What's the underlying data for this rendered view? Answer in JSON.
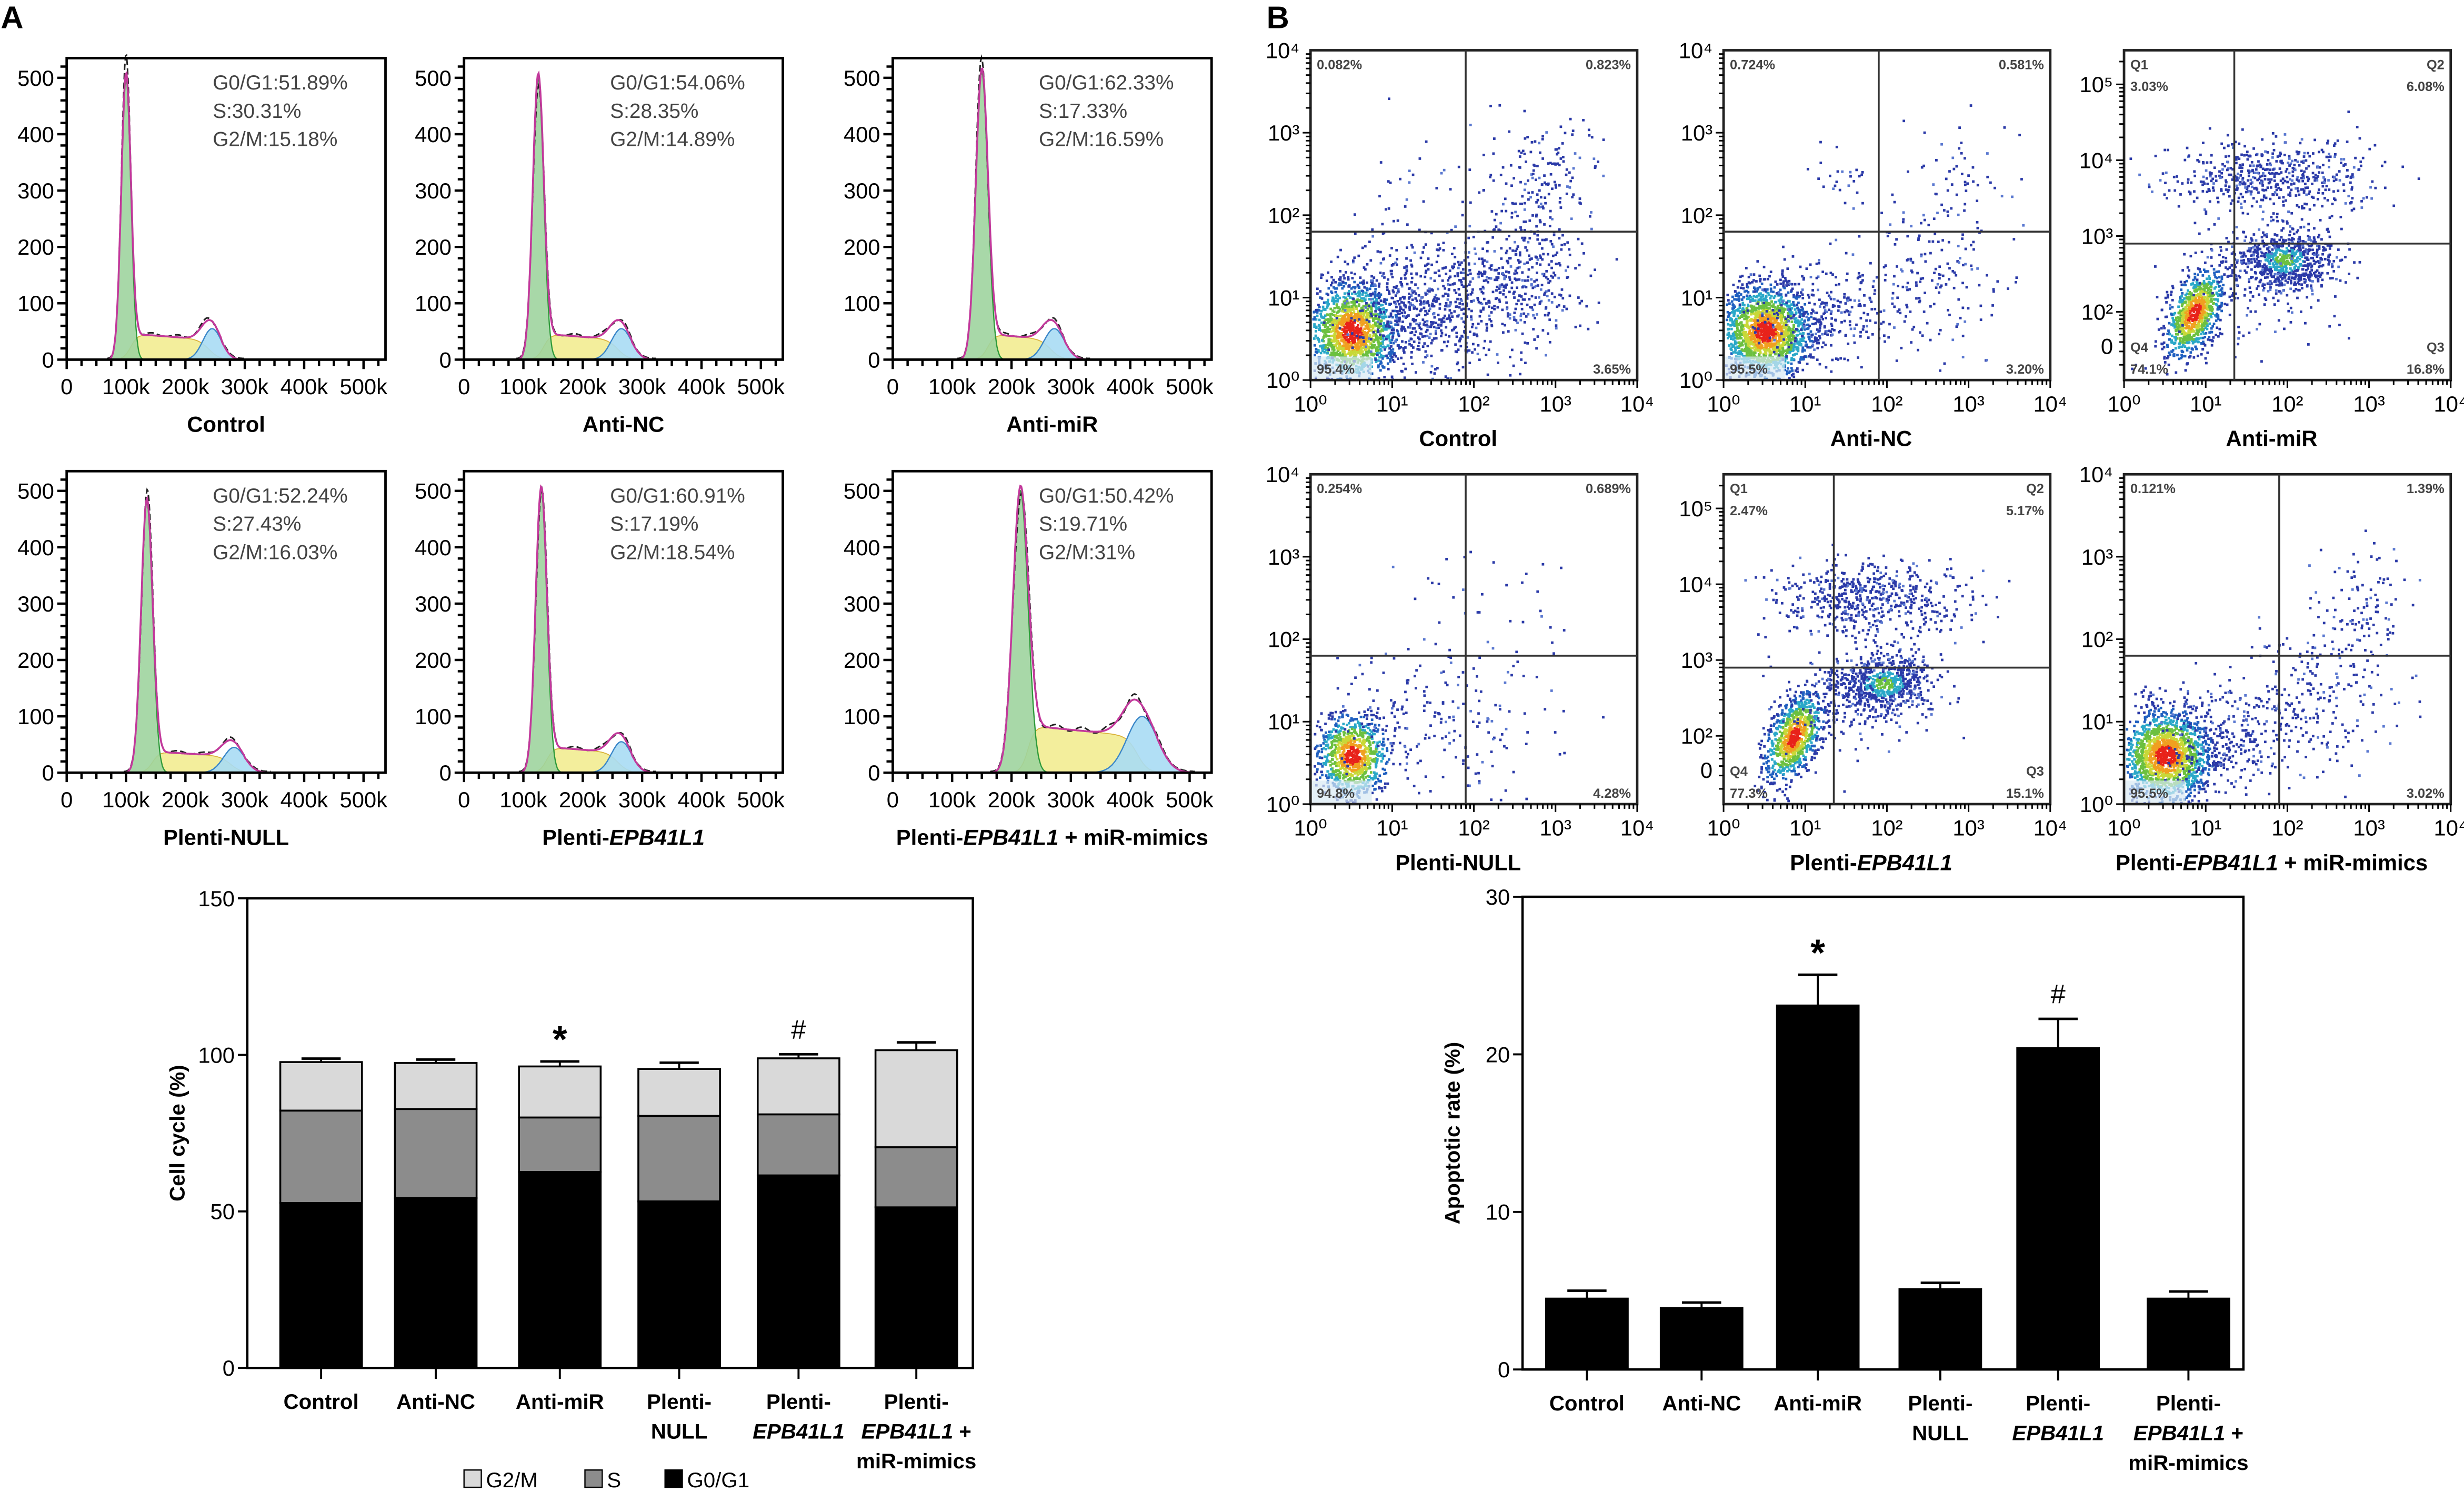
{
  "panel_labels": {
    "a": "A",
    "b": "B"
  },
  "chart_data": [
    {
      "type": "histogram",
      "panel": "A",
      "xlim": [
        0,
        537000
      ],
      "ylim": [
        0,
        535
      ],
      "xticks": [
        "0",
        "100k",
        "200k",
        "300k",
        "400k",
        "500k"
      ],
      "yticks": [
        "0",
        "100",
        "200",
        "300",
        "400",
        "500"
      ],
      "colors": {
        "g0g1": "#9fd49f",
        "s": "#f3ee9c",
        "g2m": "#a9dcf4",
        "fit": "#c2399b",
        "data": "#222222"
      },
      "panels": [
        {
          "label": [
            "Control",
            "",
            ""
          ],
          "stats": [
            "G0/G1:51.89%",
            "S:30.31%",
            "G2/M:15.18%"
          ],
          "g1_peak": [
            100000,
            500
          ],
          "g2_peak": [
            245000,
            55
          ]
        },
        {
          "label": [
            "Anti-NC",
            "",
            ""
          ],
          "stats": [
            "G0/G1:54.06%",
            "S:28.35%",
            "G2/M:14.89%"
          ],
          "g1_peak": [
            125000,
            500
          ],
          "g2_peak": [
            265000,
            55
          ]
        },
        {
          "label": [
            "Anti-miR",
            "",
            ""
          ],
          "stats": [
            "G0/G1:62.33%",
            "S:17.33%",
            "G2/M:16.59%"
          ],
          "g1_peak": [
            150000,
            510
          ],
          "g2_peak": [
            272000,
            55
          ]
        },
        {
          "label": [
            "Plenti-NULL",
            "",
            ""
          ],
          "stats": [
            "G0/G1:52.24%",
            "S:27.43%",
            "G2/M:16.03%"
          ],
          "g1_peak": [
            135000,
            480
          ],
          "g2_peak": [
            282000,
            45
          ]
        },
        {
          "label": [
            "Plenti-",
            "EPB41L1",
            ""
          ],
          "stats": [
            "G0/G1:60.91%",
            "S:17.19%",
            "G2/M:18.54%"
          ],
          "g1_peak": [
            130000,
            500
          ],
          "g2_peak": [
            265000,
            55
          ]
        },
        {
          "label": [
            "Plenti-",
            "EPB41L1",
            " + miR-mimics"
          ],
          "stats": [
            "G0/G1:50.42%",
            "S:19.71%",
            "G2/M:31%"
          ],
          "g1_peak": [
            215000,
            500
          ],
          "g2_peak": [
            420000,
            100
          ]
        }
      ]
    },
    {
      "type": "scatter",
      "panel": "B",
      "x_scale": "log",
      "xticks": [
        "10⁰",
        "10¹",
        "10²",
        "10³",
        "10⁴"
      ],
      "panels": [
        {
          "label": [
            "Control",
            "",
            ""
          ],
          "yticks": [
            "10⁰",
            "10¹",
            "10²",
            "10³",
            "10⁴"
          ],
          "quadrants": {
            "ul": "0.082%",
            "ur": "0.823%",
            "ll": "95.4%",
            "lr": "3.65%"
          }
        },
        {
          "label": [
            "Anti-NC",
            "",
            ""
          ],
          "yticks": [
            "10⁰",
            "10¹",
            "10²",
            "10³",
            "10⁴"
          ],
          "quadrants": {
            "ul": "0.724%",
            "ur": "0.581%",
            "ll": "95.5%",
            "lr": "3.20%"
          }
        },
        {
          "label": [
            "Anti-miR",
            "",
            ""
          ],
          "yticks": [
            "0",
            "10²",
            "10³",
            "10⁴",
            "10⁵"
          ],
          "quadrant_names": {
            "ul": "Q1",
            "ur": "Q2",
            "ll": "Q4",
            "lr": "Q3"
          },
          "quadrants": {
            "ul": "3.03%",
            "ur": "6.08%",
            "ll": "74.1%",
            "lr": "16.8%"
          }
        },
        {
          "label": [
            "Plenti-NULL",
            "",
            ""
          ],
          "yticks": [
            "10⁰",
            "10¹",
            "10²",
            "10³",
            "10⁴"
          ],
          "quadrants": {
            "ul": "0.254%",
            "ur": "0.689%",
            "ll": "94.8%",
            "lr": "4.28%"
          }
        },
        {
          "label": [
            "Plenti-",
            "EPB41L1",
            ""
          ],
          "yticks": [
            "0",
            "10²",
            "10³",
            "10⁴",
            "10⁵"
          ],
          "quadrant_names": {
            "ul": "Q1",
            "ur": "Q2",
            "ll": "Q4",
            "lr": "Q3"
          },
          "quadrants": {
            "ul": "2.47%",
            "ur": "5.17%",
            "ll": "77.3%",
            "lr": "15.1%"
          }
        },
        {
          "label": [
            "Plenti-",
            "EPB41L1",
            " + miR-mimics"
          ],
          "yticks": [
            "10⁰",
            "10¹",
            "10²",
            "10³",
            "10⁴"
          ],
          "quadrants": {
            "ul": "0.121%",
            "ur": "1.39%",
            "ll": "95.5%",
            "lr": "3.02%"
          }
        }
      ]
    },
    {
      "type": "bar",
      "stacked": true,
      "ylabel": "Cell cycle (%)",
      "ylim": [
        0,
        150
      ],
      "yticks": [
        "0",
        "50",
        "100",
        "150"
      ],
      "categories": [
        [
          [
            "Control",
            false
          ]
        ],
        [
          [
            "Anti-NC",
            false
          ]
        ],
        [
          [
            "Anti-miR",
            false
          ]
        ],
        [
          [
            "Plenti-",
            false
          ],
          [
            "NULL",
            false
          ]
        ],
        [
          [
            "Plenti-",
            false
          ],
          [
            "EPB41L1",
            true
          ]
        ],
        [
          [
            "Plenti-",
            false
          ],
          [
            "EPB41L1",
            true,
            " +"
          ],
          [
            "miR-mimics",
            false
          ]
        ]
      ],
      "series": [
        {
          "name": "G0/G1",
          "color": "#000000",
          "values": [
            52.7,
            54.3,
            62.6,
            53.2,
            61.5,
            51.3
          ],
          "errors": [
            4.5,
            5.4,
            6.2,
            4.8,
            5.4,
            4.2
          ]
        },
        {
          "name": "S",
          "color": "#8c8c8c",
          "values": [
            29.5,
            28.4,
            17.4,
            27.3,
            19.5,
            19.2
          ],
          "errors": [
            3.2,
            2.5,
            1.9,
            2.2,
            1.1,
            1.7
          ]
        },
        {
          "name": "G2/M",
          "color": "#d9d9d9",
          "values": [
            15.5,
            14.7,
            16.3,
            15.0,
            17.9,
            31.0
          ],
          "errors": [
            1.1,
            1.1,
            1.6,
            2.0,
            1.3,
            2.5
          ]
        }
      ],
      "annotations": [
        "",
        "",
        "*",
        "",
        "#",
        ""
      ],
      "legend": [
        "G2/M",
        "S",
        "G0/G1"
      ],
      "legend_placement": "bottom"
    },
    {
      "type": "bar",
      "ylabel": "Apoptotic rate (%)",
      "ylim": [
        0,
        30
      ],
      "yticks": [
        "0",
        "10",
        "20",
        "30"
      ],
      "categories": [
        [
          [
            "Control",
            false
          ]
        ],
        [
          [
            "Anti-NC",
            false
          ]
        ],
        [
          [
            "Anti-miR",
            false
          ]
        ],
        [
          [
            "Plenti-",
            false
          ],
          [
            "NULL",
            false
          ]
        ],
        [
          [
            "Plenti-",
            false
          ],
          [
            "EPB41L1",
            true
          ]
        ],
        [
          [
            "Plenti-",
            false
          ],
          [
            "EPB41L1",
            true,
            " +"
          ],
          [
            "miR-mimics",
            false
          ]
        ]
      ],
      "values": [
        4.5,
        3.9,
        23.1,
        5.1,
        20.4,
        4.5
      ],
      "errors": [
        0.5,
        0.35,
        1.95,
        0.4,
        1.85,
        0.45
      ],
      "color": "#000000",
      "annotations": [
        "",
        "",
        "*",
        "",
        "#",
        ""
      ]
    }
  ]
}
